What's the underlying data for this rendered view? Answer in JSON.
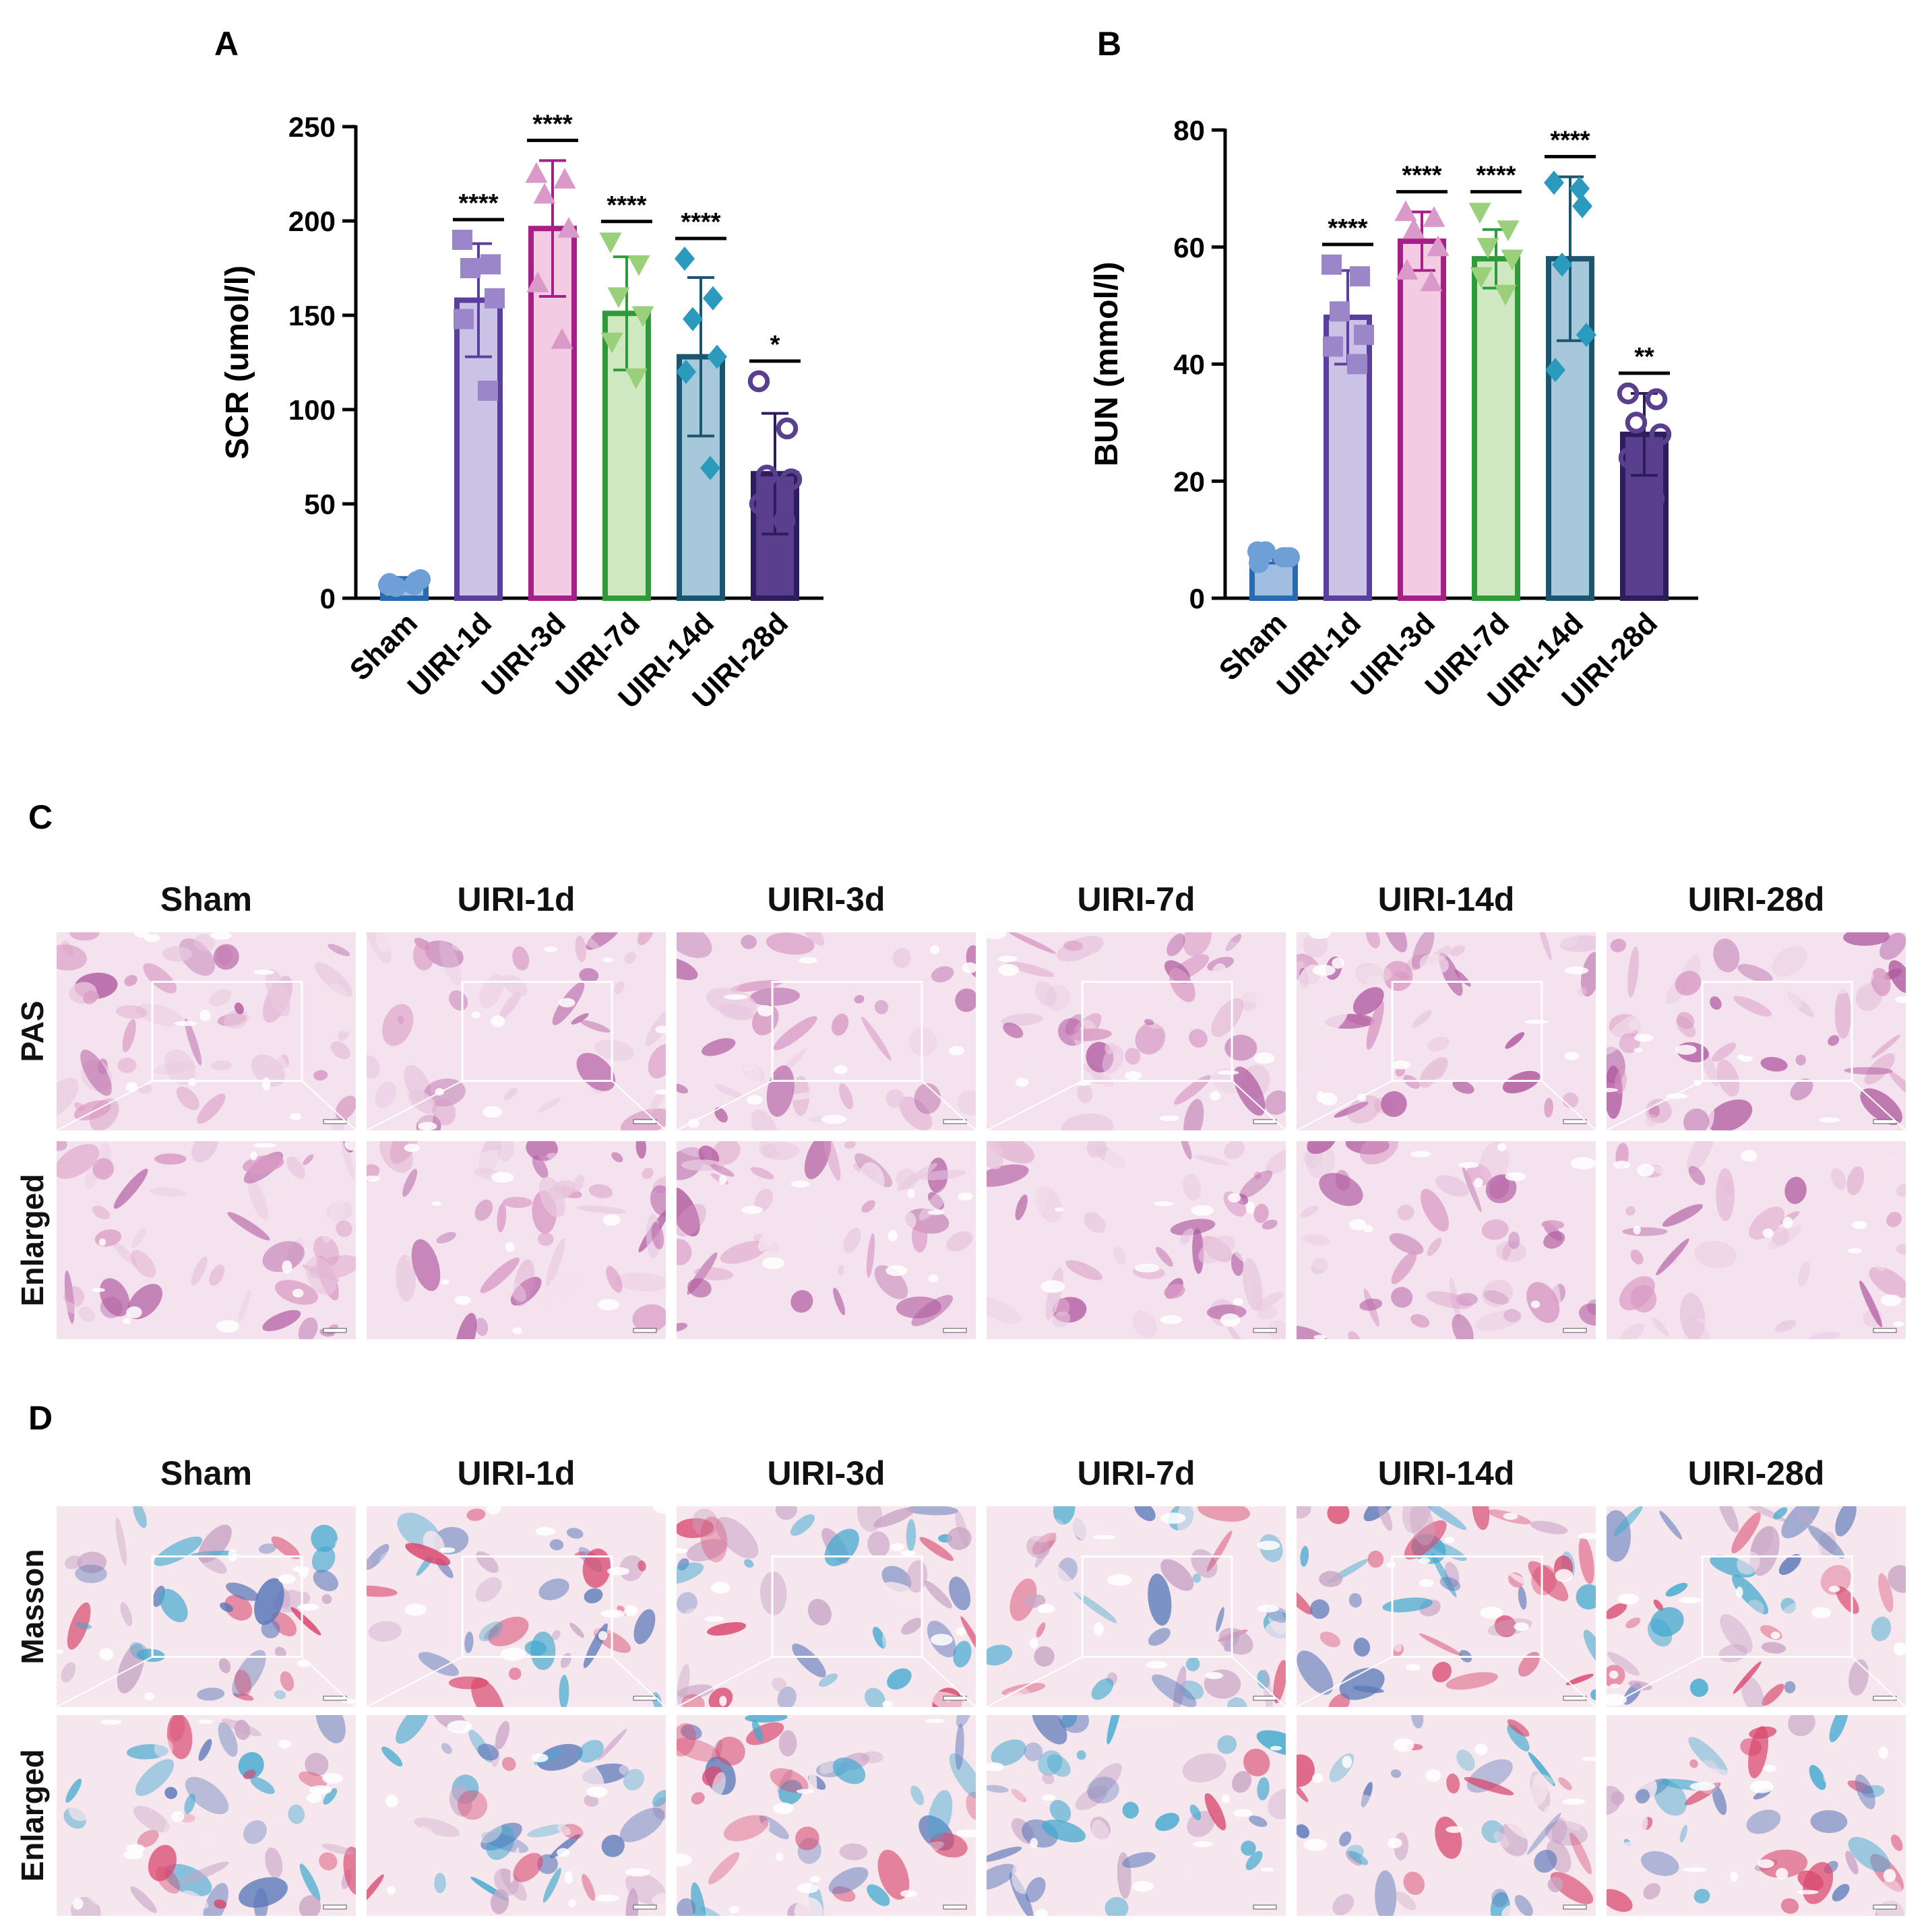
{
  "panels": {
    "A": "A",
    "B": "B",
    "C": "C",
    "D": "D"
  },
  "groups": [
    "Sham",
    "UIRI-1d",
    "UIRI-3d",
    "UIRI-7d",
    "UIRI-14d",
    "UIRI-28d"
  ],
  "colors": {
    "Sham": {
      "fill": "#9fbee0",
      "edge": "#2a6ab0",
      "point": "#6e9fd6"
    },
    "UIRI-1d": {
      "fill": "#cbc3e6",
      "edge": "#5b3f9e",
      "point": "#9a86c8"
    },
    "UIRI-3d": {
      "fill": "#f3cce4",
      "edge": "#a51f86",
      "point": "#d99ac9"
    },
    "UIRI-7d": {
      "fill": "#cfe8c2",
      "edge": "#2e9a3a",
      "point": "#9ad07a"
    },
    "UIRI-14d": {
      "fill": "#a7c8da",
      "edge": "#1b5670",
      "point": "#2a9bbd"
    },
    "UIRI-28d": {
      "fill": "#5a3f8e",
      "edge": "#2e1d5e",
      "point": "#5a3f8e"
    }
  },
  "chart_data": [
    {
      "panel": "A",
      "type": "bar",
      "ylabel": "SCR (umol/l)",
      "ylim": [
        0,
        250
      ],
      "yticks": [
        "0",
        "50",
        "100",
        "150",
        "200",
        "250"
      ],
      "categories": [
        "Sham",
        "UIRI-1d",
        "UIRI-3d",
        "UIRI-7d",
        "UIRI-14d",
        "UIRI-28d"
      ],
      "values": [
        8,
        158,
        196,
        151,
        128,
        66
      ],
      "errors": [
        3,
        30,
        36,
        30,
        42,
        32
      ],
      "significance": [
        "",
        "****",
        "****",
        "****",
        "****",
        "*"
      ],
      "points": [
        [
          7,
          9,
          6,
          10,
          8,
          7
        ],
        [
          190,
          177,
          175,
          159,
          148,
          110
        ],
        [
          225,
          222,
          214,
          196,
          167,
          137
        ],
        [
          189,
          177,
          160,
          150,
          136,
          117
        ],
        [
          180,
          159,
          148,
          128,
          120,
          69
        ],
        [
          115,
          90,
          65,
          63,
          50,
          41
        ]
      ],
      "markers": [
        "circle",
        "square",
        "triangle-up",
        "triangle-down",
        "diamond",
        "circle-open"
      ]
    },
    {
      "panel": "B",
      "type": "bar",
      "ylabel": "BUN (mmol/l)",
      "ylim": [
        0,
        80
      ],
      "yticks": [
        "0",
        "20",
        "40",
        "60",
        "80"
      ],
      "categories": [
        "Sham",
        "UIRI-1d",
        "UIRI-3d",
        "UIRI-7d",
        "UIRI-14d",
        "UIRI-28d"
      ],
      "values": [
        7,
        48,
        61,
        58,
        58,
        28
      ],
      "errors": [
        1,
        8,
        5,
        5,
        14,
        7
      ],
      "significance": [
        "",
        "****",
        "****",
        "****",
        "****",
        "**"
      ],
      "points": [
        [
          8,
          7,
          8,
          7,
          6,
          7
        ],
        [
          57,
          55,
          49,
          45,
          43,
          40
        ],
        [
          66,
          65,
          63,
          60,
          56,
          54
        ],
        [
          66,
          63,
          60,
          58,
          55,
          52
        ],
        [
          71,
          67,
          57,
          45,
          39,
          70
        ],
        [
          35,
          34,
          30,
          28,
          24,
          17
        ]
      ],
      "markers": [
        "circle",
        "square",
        "triangle-up",
        "triangle-down",
        "diamond",
        "circle-open"
      ]
    }
  ],
  "histology": {
    "C": {
      "rows": [
        "PAS",
        "Enlarged"
      ],
      "columns": [
        "Sham",
        "UIRI-1d",
        "UIRI-3d",
        "UIRI-7d",
        "UIRI-14d",
        "UIRI-28d"
      ],
      "stain_colors": [
        "#e8c8df",
        "#d99ac4",
        "#b05aa0",
        "#f4e3ee"
      ]
    },
    "D": {
      "rows": [
        "Masson",
        "Enlarged"
      ],
      "columns": [
        "Sham",
        "UIRI-1d",
        "UIRI-3d",
        "UIRI-7d",
        "UIRI-14d",
        "UIRI-28d"
      ],
      "stain_colors": [
        "#d9486e",
        "#c9a6c6",
        "#5a78b8",
        "#f6e6ee",
        "#41a9cf"
      ]
    }
  }
}
